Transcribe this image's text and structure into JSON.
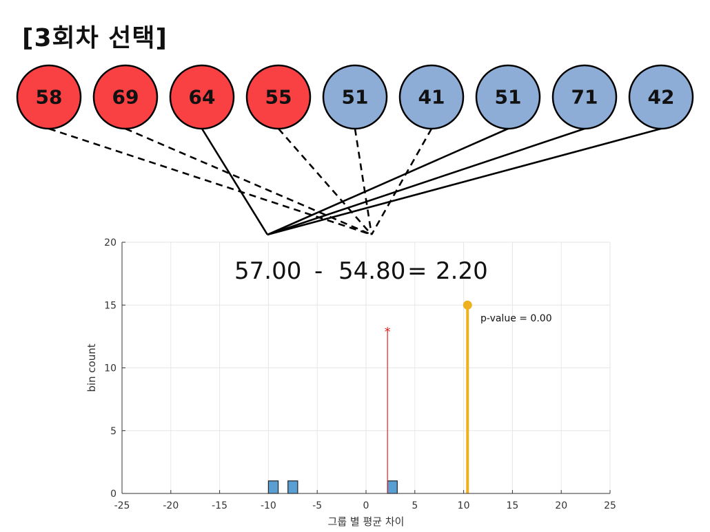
{
  "title": "[3회차 선택]",
  "colors": {
    "red_group": "#f94144",
    "blue_group": "#8eadd6",
    "bar_fill": "#5a9fd4",
    "marker_red": "#e02020",
    "observed": "#edb120"
  },
  "balls": [
    {
      "label": "58",
      "group": "red",
      "line": "dashed"
    },
    {
      "label": "69",
      "group": "red",
      "line": "dashed"
    },
    {
      "label": "64",
      "group": "red",
      "line": "solid"
    },
    {
      "label": "55",
      "group": "red",
      "line": "dashed"
    },
    {
      "label": "51",
      "group": "blue",
      "line": "dashed"
    },
    {
      "label": "41",
      "group": "blue",
      "line": "dashed"
    },
    {
      "label": "51",
      "group": "blue",
      "line": "solid"
    },
    {
      "label": "71",
      "group": "blue",
      "line": "solid"
    },
    {
      "label": "42",
      "group": "blue",
      "line": "solid"
    }
  ],
  "equation": {
    "mean_a": "57.00",
    "minus": "-",
    "mean_b": "54.80",
    "equals": "=",
    "diff": "2.20"
  },
  "chart_data": {
    "type": "bar",
    "xlabel": "그룹 별 평균 차이",
    "ylabel": "bin count",
    "xlim": [
      -25,
      25
    ],
    "ylim": [
      0,
      20
    ],
    "xticks": [
      -25,
      -20,
      -15,
      -10,
      -5,
      0,
      5,
      10,
      15,
      20,
      25
    ],
    "yticks": [
      0,
      5,
      10,
      15,
      20
    ],
    "grid": true,
    "bins": [
      {
        "x0": -10,
        "x1": -9,
        "count": 1
      },
      {
        "x0": -8,
        "x1": -7,
        "count": 1
      },
      {
        "x0": 2.2,
        "x1": 3.2,
        "count": 1
      }
    ],
    "current_marker": {
      "x": 2.2,
      "y": 13,
      "symbol": "*"
    },
    "observed_stem": {
      "x": 10.4,
      "y": 15
    },
    "annotation": "p-value = 0.00"
  }
}
